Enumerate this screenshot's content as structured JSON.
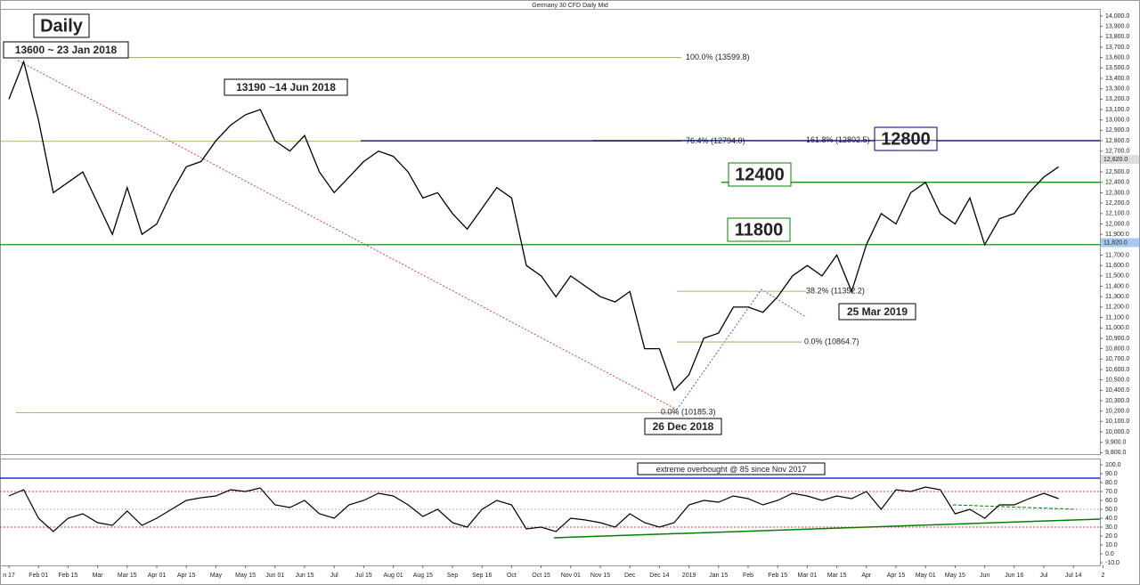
{
  "chart_data": {
    "type": "line",
    "title": "Germany 30 CFD Daily Mid",
    "categories": [
      "n 17",
      null,
      "Feb 01",
      null,
      "Feb 15",
      null,
      "Mar",
      null,
      "Mar 15",
      null,
      "Apr 01",
      null,
      "Apr 15",
      null,
      "May",
      null,
      "May 15",
      null,
      "Jun 01",
      null,
      "Jun 15",
      null,
      "Jul",
      null,
      "Jul 15",
      null,
      "Aug 01",
      null,
      "Aug 15",
      null,
      "Sep",
      null,
      "Sep 16",
      null,
      "Oct",
      null,
      "Oct 15",
      null,
      "Nov 01",
      null,
      "Nov 15",
      null,
      "Dec",
      null,
      "Dec 14",
      null,
      "2019",
      null,
      "Jan 15",
      null,
      "Feb",
      null,
      "Feb 15",
      null,
      "Mar 01",
      null,
      "Mar 15",
      null,
      "Apr",
      null,
      "Apr 15",
      null,
      "May 01",
      null,
      "May 15",
      null,
      "Jun",
      null,
      "Jun 16",
      null,
      "Jul",
      null,
      "Jul 14",
      null,
      "2"
    ],
    "series": [
      {
        "color": "#000000",
        "values": [
          13200,
          13560,
          13000,
          12300,
          12400,
          12500,
          12200,
          11900,
          12350,
          11900,
          12000,
          12300,
          12550,
          12600,
          12800,
          12950,
          13050,
          13100,
          12800,
          12700,
          12850,
          12500,
          12300,
          12450,
          12600,
          12700,
          12650,
          12500,
          12250,
          12300,
          12100,
          11950,
          12150,
          12350,
          12250,
          11600,
          11500,
          11300,
          11500,
          11400,
          11300,
          11250,
          11350,
          10800,
          10800,
          10400,
          10550,
          10900,
          10950,
          11200,
          11200,
          11150,
          11300,
          11500,
          11600,
          11500,
          11700,
          11350,
          11800,
          12100,
          12000,
          12300,
          12400,
          12100,
          12000,
          12250,
          11800,
          12050,
          12100,
          12300,
          12450,
          12550,
          null,
          null,
          null
        ]
      },
      {
        "color": "#000000",
        "axis": "y2",
        "values": [
          65,
          72,
          40,
          25,
          40,
          45,
          35,
          32,
          48,
          32,
          40,
          50,
          60,
          63,
          65,
          72,
          70,
          74,
          55,
          52,
          60,
          45,
          40,
          55,
          60,
          68,
          65,
          55,
          42,
          50,
          35,
          30,
          50,
          60,
          55,
          28,
          30,
          25,
          40,
          38,
          35,
          30,
          45,
          35,
          30,
          35,
          55,
          60,
          58,
          65,
          62,
          55,
          60,
          68,
          65,
          60,
          65,
          62,
          70,
          50,
          72,
          70,
          75,
          72,
          45,
          50,
          40,
          55,
          55,
          62,
          68,
          62,
          null,
          null,
          null
        ]
      }
    ],
    "ylim": [
      9786,
      14068
    ],
    "yticks": [
      {
        "value": 9800,
        "label": "9,800.0"
      },
      {
        "value": 9900,
        "label": "9,900.0"
      },
      {
        "value": 10000,
        "label": "10,000.0"
      },
      {
        "value": 10100,
        "label": "10,100.0"
      },
      {
        "value": 10200,
        "label": "10,200.0"
      },
      {
        "value": 10300,
        "label": "10,300.0"
      },
      {
        "value": 10400,
        "label": "10,400.0"
      },
      {
        "value": 10500,
        "label": "10,500.0"
      },
      {
        "value": 10600,
        "label": "10,600.0"
      },
      {
        "value": 10700,
        "label": "10,700.0"
      },
      {
        "value": 10800,
        "label": "10,800.0"
      },
      {
        "value": 10900,
        "label": "10,900.0"
      },
      {
        "value": 11000,
        "label": "11,000.0"
      },
      {
        "value": 11100,
        "label": "11,100.0"
      },
      {
        "value": 11200,
        "label": "11,200.0"
      },
      {
        "value": 11300,
        "label": "11,300.0"
      },
      {
        "value": 11400,
        "label": "11,400.0"
      },
      {
        "value": 11500,
        "label": "11,500.0"
      },
      {
        "value": 11600,
        "label": "11,600.0"
      },
      {
        "value": 11700,
        "label": "11,700.0"
      },
      {
        "value": 11800,
        "label": "11,800.0"
      },
      {
        "value": 11900,
        "label": "11,900.0"
      },
      {
        "value": 12000,
        "label": "12,000.0"
      },
      {
        "value": 12100,
        "label": "12,100.0"
      },
      {
        "value": 12200,
        "label": "12,200.0"
      },
      {
        "value": 12300,
        "label": "12,300.0"
      },
      {
        "value": 12400,
        "label": "12,400.0"
      },
      {
        "value": 12500,
        "label": "12,500.0"
      },
      {
        "value": 12600,
        "label": "12,600.0"
      },
      {
        "value": 12700,
        "label": "12,700.0"
      },
      {
        "value": 12800,
        "label": "12,800.0"
      },
      {
        "value": 12900,
        "label": "12,900.0"
      },
      {
        "value": 13000,
        "label": "13,000.0"
      },
      {
        "value": 13100,
        "label": "13,100.0"
      },
      {
        "value": 13200,
        "label": "13,200.0"
      },
      {
        "value": 13300,
        "label": "13,300.0"
      },
      {
        "value": 13400,
        "label": "13,400.0"
      },
      {
        "value": 13500,
        "label": "13,500.0"
      },
      {
        "value": 13600,
        "label": "13,600.0"
      },
      {
        "value": 13700,
        "label": "13,700.0"
      },
      {
        "value": 13800,
        "label": "13,800.0"
      },
      {
        "value": 13900,
        "label": "13,900.0"
      },
      {
        "value": 14000,
        "label": "14,000.0"
      }
    ],
    "y2lim": [
      -13,
      107
    ],
    "y2ticks": [
      {
        "value": 100,
        "label": "100.0"
      },
      {
        "value": 90,
        "label": "90.0"
      },
      {
        "value": 80,
        "label": "80.0"
      },
      {
        "value": 70,
        "label": "70.0"
      },
      {
        "value": 60,
        "label": "60.0"
      },
      {
        "value": 50,
        "label": "50.0"
      },
      {
        "value": 40,
        "label": "40.0"
      },
      {
        "value": 30,
        "label": "30.0"
      },
      {
        "value": 20,
        "label": "20.0"
      },
      {
        "value": 10,
        "label": "10.0"
      },
      {
        "value": 0,
        "label": "0.0"
      },
      {
        "value": -10,
        "label": "-10.0"
      }
    ],
    "levels": [
      {
        "value": 12800,
        "label": "12800",
        "color": "#000080"
      },
      {
        "value": 12400,
        "label": "12400",
        "color": "#008000"
      },
      {
        "value": 11800,
        "label": "11800",
        "color": "#008000"
      }
    ],
    "fib_levels": [
      {
        "value": 13599.8,
        "label": "100.0% (13599.8)"
      },
      {
        "value": 12794.0,
        "label": "76.4% (12794.0)"
      },
      {
        "value": 12802.5,
        "label": "161.8% (12802.5)"
      },
      {
        "value": 11352.2,
        "label": "38.2% (11352.2)"
      },
      {
        "value": 10864.7,
        "label": "0.0% (10864.7)"
      },
      {
        "value": 10185.3,
        "label": "0.0% (10185.3)"
      }
    ],
    "price_tags": [
      {
        "value": 12620,
        "label": "12,620.0"
      },
      {
        "value": 11820,
        "label": "11,820.0"
      }
    ],
    "y2_levels": [
      {
        "value": 85,
        "color": "#0000cc"
      },
      {
        "value": 70,
        "color": "#cc0000"
      },
      {
        "value": 50,
        "color": "#999999"
      },
      {
        "value": 30,
        "color": "#cc0000"
      }
    ],
    "annotations": [
      "Daily",
      "13600 ~ 23 Jan 2018",
      "13190 ~14 Jun 2018",
      "26 Dec 2018",
      "25 Mar 2019",
      "extreme overbought @ 85 since Nov 2017"
    ]
  }
}
